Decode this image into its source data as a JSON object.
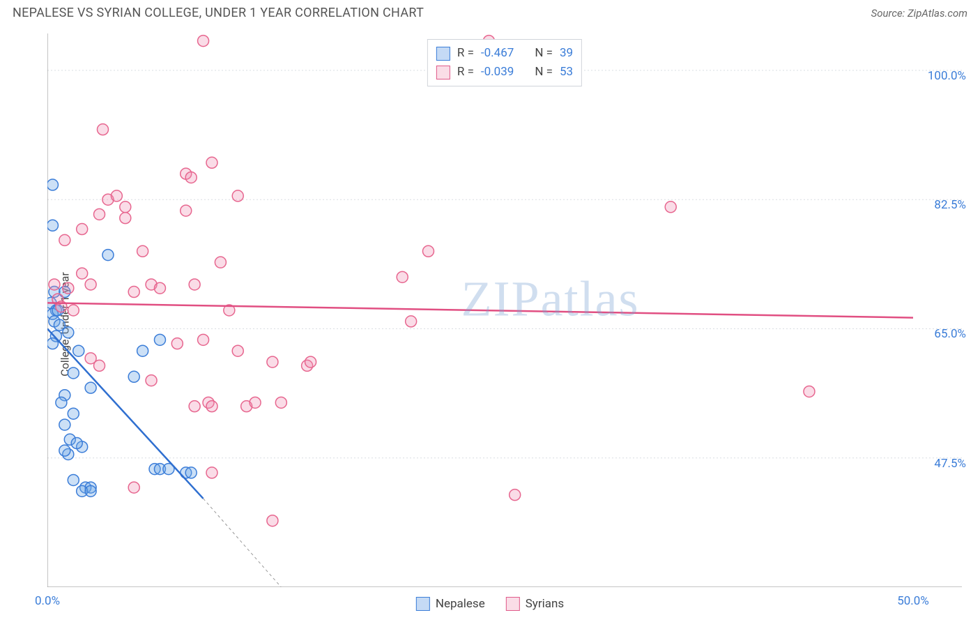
{
  "header": {
    "title": "NEPALESE VS SYRIAN COLLEGE, UNDER 1 YEAR CORRELATION CHART",
    "source_prefix": "Source: ",
    "source_name": "ZipAtlas.com"
  },
  "watermark": {
    "text_a": "ZIP",
    "text_b": "atlas"
  },
  "chart": {
    "type": "scatter",
    "ylabel": "College, Under 1 year",
    "xlim": [
      0,
      50
    ],
    "ylim": [
      30,
      105
    ],
    "xticks": [
      0,
      5,
      10,
      15,
      20,
      25,
      30,
      35,
      40,
      45,
      50
    ],
    "xtick_labels": {
      "0": "0.0%",
      "50": "50.0%"
    },
    "yticks": [
      47.5,
      65.0,
      82.5,
      100.0
    ],
    "ytick_labels": [
      "47.5%",
      "65.0%",
      "82.5%",
      "100.0%"
    ],
    "grid_color": "#d9dde2",
    "grid_dash": "2,3",
    "axis_color": "#888888",
    "background_color": "#ffffff",
    "marker_radius": 8,
    "marker_stroke_width": 1.5,
    "series": [
      {
        "name": "Nepalese",
        "fill": "rgba(110,165,230,0.35)",
        "stroke": "#3b7dd8",
        "R": "-0.467",
        "N": "39",
        "trend": {
          "x1": 0,
          "y1": 65.0,
          "x2": 9.0,
          "y2": 42.0,
          "extend_x2": 13.5,
          "extend_y2": 30.0,
          "color": "#2f6fd0",
          "width": 2.5
        },
        "points": [
          [
            0.3,
            84.5
          ],
          [
            0.3,
            79.0
          ],
          [
            0.4,
            70.0
          ],
          [
            0.2,
            68.5
          ],
          [
            0.5,
            67.5
          ],
          [
            0.3,
            67.0
          ],
          [
            0.6,
            67.5
          ],
          [
            0.4,
            66.0
          ],
          [
            0.7,
            65.5
          ],
          [
            1.0,
            70.0
          ],
          [
            0.5,
            64.0
          ],
          [
            1.2,
            64.5
          ],
          [
            0.3,
            63.0
          ],
          [
            1.5,
            59.0
          ],
          [
            2.5,
            57.0
          ],
          [
            1.0,
            56.0
          ],
          [
            0.8,
            55.0
          ],
          [
            1.5,
            53.5
          ],
          [
            1.0,
            52.0
          ],
          [
            1.3,
            50.0
          ],
          [
            2.0,
            49.0
          ],
          [
            1.7,
            49.5
          ],
          [
            1.2,
            48.0
          ],
          [
            1.0,
            48.5
          ],
          [
            1.5,
            44.5
          ],
          [
            2.2,
            43.5
          ],
          [
            2.5,
            43.5
          ],
          [
            2.0,
            43.0
          ],
          [
            6.2,
            46.0
          ],
          [
            6.5,
            46.0
          ],
          [
            7.0,
            46.0
          ],
          [
            8.0,
            45.5
          ],
          [
            8.3,
            45.5
          ],
          [
            3.5,
            75.0
          ],
          [
            5.0,
            58.5
          ],
          [
            6.5,
            63.5
          ],
          [
            5.5,
            62.0
          ],
          [
            1.8,
            62.0
          ],
          [
            2.5,
            43.0
          ]
        ]
      },
      {
        "name": "Syrians",
        "fill": "rgba(240,140,175,0.30)",
        "stroke": "#e7668f",
        "R": "-0.039",
        "N": "53",
        "trend": {
          "x1": 0,
          "y1": 68.5,
          "x2": 50,
          "y2": 66.5,
          "color": "#e14f82",
          "width": 2.5
        },
        "points": [
          [
            0.4,
            71.0
          ],
          [
            0.6,
            69.0
          ],
          [
            0.8,
            68.0
          ],
          [
            1.2,
            70.5
          ],
          [
            1.5,
            67.5
          ],
          [
            2.0,
            72.5
          ],
          [
            2.5,
            71.0
          ],
          [
            3.5,
            82.5
          ],
          [
            3.0,
            80.5
          ],
          [
            3.2,
            92.0
          ],
          [
            4.0,
            83.0
          ],
          [
            4.5,
            80.0
          ],
          [
            5.0,
            70.0
          ],
          [
            5.5,
            75.5
          ],
          [
            6.0,
            71.0
          ],
          [
            6.5,
            70.5
          ],
          [
            7.5,
            63.0
          ],
          [
            8.0,
            86.0
          ],
          [
            8.3,
            85.5
          ],
          [
            8.0,
            81.0
          ],
          [
            8.5,
            71.0
          ],
          [
            8.5,
            54.5
          ],
          [
            9.0,
            104.0
          ],
          [
            9.5,
            87.5
          ],
          [
            9.0,
            63.5
          ],
          [
            9.3,
            55.0
          ],
          [
            9.5,
            54.5
          ],
          [
            9.5,
            45.5
          ],
          [
            10.0,
            74.0
          ],
          [
            10.5,
            67.5
          ],
          [
            11.0,
            83.0
          ],
          [
            11.0,
            62.0
          ],
          [
            11.5,
            54.5
          ],
          [
            12.0,
            55.0
          ],
          [
            13.0,
            60.5
          ],
          [
            13.5,
            55.0
          ],
          [
            13.0,
            39.0
          ],
          [
            15.0,
            60.0
          ],
          [
            15.2,
            60.5
          ],
          [
            20.5,
            72.0
          ],
          [
            21.0,
            66.0
          ],
          [
            22.0,
            75.5
          ],
          [
            25.5,
            104.0
          ],
          [
            27.0,
            42.5
          ],
          [
            36.0,
            81.5
          ],
          [
            44.0,
            56.5
          ],
          [
            5.0,
            43.5
          ],
          [
            4.5,
            81.5
          ],
          [
            3.0,
            60.0
          ],
          [
            1.0,
            77.0
          ],
          [
            2.0,
            78.5
          ],
          [
            2.5,
            61.0
          ],
          [
            6.0,
            58.0
          ]
        ]
      }
    ]
  },
  "legend_top": {
    "rows": [
      {
        "swatch": "blue",
        "r_label": "R =",
        "r_val": "-0.467",
        "n_label": "N =",
        "n_val": "39"
      },
      {
        "swatch": "pink",
        "r_label": "R =",
        "r_val": "-0.039",
        "n_label": "N =",
        "n_val": "53"
      }
    ]
  },
  "legend_bottom": {
    "items": [
      {
        "swatch": "blue",
        "label": "Nepalese"
      },
      {
        "swatch": "pink",
        "label": "Syrians"
      }
    ]
  }
}
